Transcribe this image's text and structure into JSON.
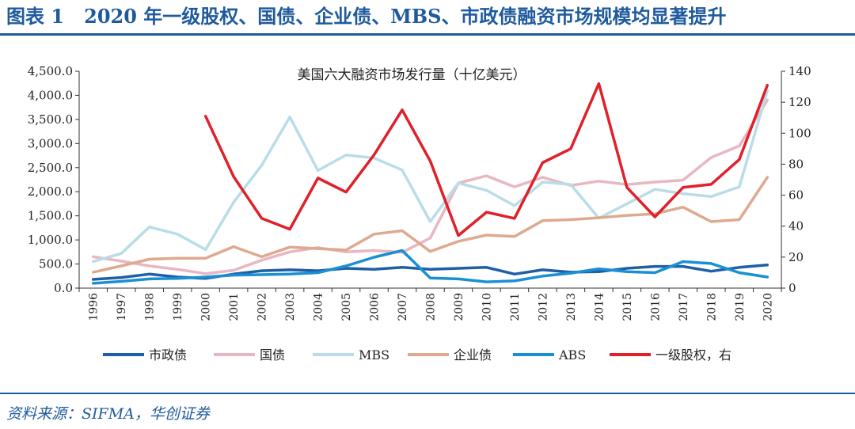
{
  "figure": {
    "label": "图表 1",
    "title": "2020 年一级股权、国债、企业债、MBS、市政债融资市场规模均显著提升",
    "source": "资料来源：SIFMA，华创证券"
  },
  "chart_data": {
    "type": "line",
    "title": "美国六大融资市场发行量（十亿美元）",
    "categories": [
      "1996",
      "1997",
      "1998",
      "1999",
      "2000",
      "2001",
      "2002",
      "2003",
      "2004",
      "2005",
      "2006",
      "2007",
      "2008",
      "2009",
      "2010",
      "2011",
      "2012",
      "2013",
      "2014",
      "2015",
      "2016",
      "2017",
      "2018",
      "2019",
      "2020"
    ],
    "y_left": {
      "min": 0,
      "max": 4500,
      "step": 500,
      "tick_labels": [
        "0.0",
        "500.0",
        "1,000.0",
        "1,500.0",
        "2,000.0",
        "2,500.0",
        "3,000.0",
        "3,500.0",
        "4,000.0",
        "4,500.0"
      ]
    },
    "y_right": {
      "min": 0,
      "max": 140,
      "step": 20,
      "tick_labels": [
        "0",
        "20",
        "40",
        "60",
        "80",
        "100",
        "120",
        "140"
      ]
    },
    "series": [
      {
        "name": "市政债",
        "axis": "left",
        "color": "#1f5fa8",
        "values": [
          180,
          220,
          290,
          230,
          200,
          290,
          360,
          380,
          360,
          410,
          390,
          430,
          390,
          410,
          430,
          290,
          380,
          330,
          340,
          410,
          450,
          450,
          350,
          430,
          480
        ]
      },
      {
        "name": "国债",
        "axis": "left",
        "color": "#e8b7c2",
        "values": [
          650,
          560,
          460,
          390,
          300,
          370,
          580,
          750,
          840,
          750,
          780,
          740,
          1040,
          2180,
          2330,
          2100,
          2300,
          2130,
          2220,
          2150,
          2200,
          2240,
          2710,
          2950,
          3900
        ]
      },
      {
        "name": "MBS",
        "axis": "left",
        "color": "#b9dde8",
        "values": [
          550,
          720,
          1270,
          1120,
          800,
          1780,
          2550,
          3550,
          2440,
          2760,
          2700,
          2450,
          1380,
          2180,
          2030,
          1710,
          2200,
          2150,
          1450,
          1750,
          2050,
          1960,
          1900,
          2100,
          4100
        ]
      },
      {
        "name": "企业债",
        "axis": "left",
        "color": "#dfa990",
        "values": [
          330,
          460,
          600,
          620,
          620,
          860,
          650,
          850,
          820,
          790,
          1120,
          1190,
          760,
          970,
          1100,
          1070,
          1400,
          1420,
          1460,
          1510,
          1540,
          1680,
          1380,
          1420,
          2300
        ]
      },
      {
        "name": "ABS",
        "axis": "left",
        "color": "#1b8fd4",
        "values": [
          100,
          140,
          190,
          200,
          230,
          270,
          280,
          290,
          320,
          460,
          640,
          780,
          210,
          190,
          130,
          150,
          250,
          310,
          400,
          340,
          320,
          550,
          510,
          320,
          230
        ]
      },
      {
        "name": "一级股权，右",
        "axis": "right",
        "color": "#e0202a",
        "values": [
          null,
          null,
          null,
          null,
          111,
          72,
          45,
          38,
          71,
          62,
          86,
          115,
          82,
          34,
          49,
          45,
          81,
          90,
          132,
          65,
          46,
          65,
          67,
          83,
          131
        ]
      }
    ]
  }
}
